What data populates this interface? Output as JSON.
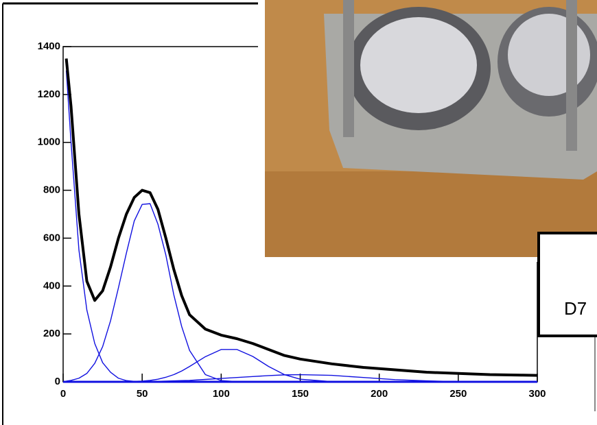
{
  "chart_data": {
    "type": "line",
    "x": [
      2,
      5,
      10,
      15,
      20,
      25,
      30,
      35,
      40,
      45,
      50,
      55,
      60,
      65,
      70,
      75,
      80,
      90,
      100,
      110,
      120,
      130,
      140,
      150,
      170,
      190,
      210,
      230,
      250,
      270,
      290,
      300
    ],
    "series": [
      {
        "color": "#000000",
        "values": [
          1350,
          1150,
          700,
          420,
          340,
          380,
          480,
          600,
          700,
          770,
          800,
          790,
          720,
          600,
          470,
          360,
          280,
          220,
          195,
          180,
          160,
          135,
          110,
          95,
          75,
          60,
          50,
          40,
          35,
          30,
          28,
          27
        ]
      },
      {
        "color": "#1010e0",
        "values": [
          1300,
          1000,
          550,
          300,
          160,
          80,
          40,
          15,
          5,
          2,
          0,
          0,
          0,
          0,
          0,
          0,
          0,
          0,
          0,
          0,
          0,
          0,
          0,
          0,
          0,
          0,
          0,
          0,
          0,
          0,
          0,
          0
        ]
      },
      {
        "color": "#1010e0",
        "values": [
          3,
          6,
          15,
          35,
          77,
          147,
          255,
          393,
          537,
          672,
          741,
          744,
          658,
          529,
          364,
          231,
          131,
          30,
          5,
          1,
          0,
          0,
          0,
          0,
          0,
          0,
          0,
          0,
          0,
          0,
          0,
          0
        ]
      },
      {
        "color": "#1010e0",
        "values": [
          0,
          0,
          0,
          0,
          0,
          0,
          0,
          0,
          1,
          2,
          3,
          6,
          11,
          19,
          30,
          45,
          64,
          105,
          135,
          135,
          106,
          64,
          30,
          11,
          1,
          0,
          0,
          0,
          0,
          0,
          0,
          0
        ]
      },
      {
        "color": "#1010e0",
        "values": [
          0,
          0,
          0,
          0,
          0,
          0,
          0,
          0,
          0,
          0,
          1,
          1,
          2,
          3,
          4,
          5,
          6,
          10,
          14,
          18,
          22,
          26,
          29,
          30,
          27,
          18,
          9,
          4,
          1,
          0,
          0,
          0
        ]
      }
    ],
    "xlim": [
      0,
      300
    ],
    "xticks": [
      0,
      50,
      100,
      150,
      200,
      250,
      300
    ],
    "ylim": [
      0,
      1400
    ],
    "yticks": [
      0,
      200,
      400,
      600,
      800,
      1000,
      1200,
      1400
    ],
    "inset_label": "D7"
  }
}
